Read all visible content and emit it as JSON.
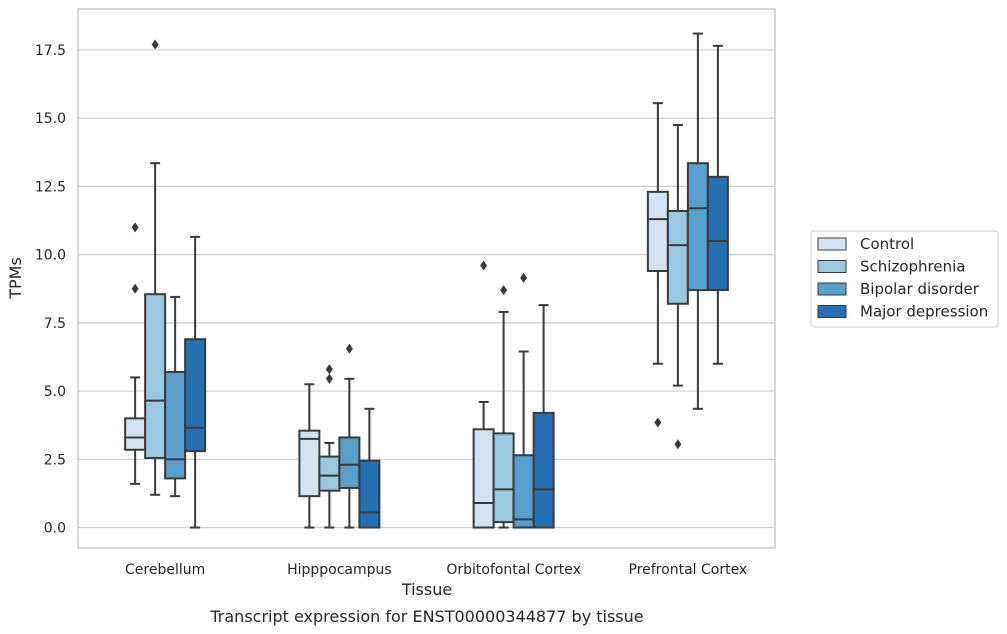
{
  "chart_data": {
    "type": "box",
    "caption": "Transcript expression for ENST00000344877 by tissue",
    "xlabel": "Tissue",
    "ylabel": "TPMs",
    "ylim": [
      -0.75,
      19.0
    ],
    "yticks": [
      "0.0",
      "2.5",
      "5.0",
      "7.5",
      "10.0",
      "12.5",
      "15.0",
      "17.5"
    ],
    "grid": "horizontal",
    "legend_position": "right",
    "categories": [
      "Cerebellum",
      "Hipppocampus",
      "Orbitofontal Cortex",
      "Prefrontal Cortex"
    ],
    "series": [
      {
        "name": "Control",
        "color": "#d3e3f3",
        "boxes": [
          {
            "whisker_low": 1.6,
            "q1": 2.85,
            "median": 3.3,
            "q3": 4.0,
            "whisker_high": 5.5,
            "outliers": [
              11.0,
              8.75
            ]
          },
          {
            "whisker_low": 0.0,
            "q1": 1.15,
            "median": 3.25,
            "q3": 3.55,
            "whisker_high": 5.25,
            "outliers": []
          },
          {
            "whisker_low": 0.0,
            "q1": 0.0,
            "median": 0.9,
            "q3": 3.6,
            "whisker_high": 4.6,
            "outliers": [
              9.6
            ]
          },
          {
            "whisker_low": 6.0,
            "q1": 9.4,
            "median": 11.3,
            "q3": 12.3,
            "whisker_high": 15.55,
            "outliers": [
              3.85
            ]
          }
        ]
      },
      {
        "name": "Schizophrenia",
        "color": "#9ac8e0",
        "boxes": [
          {
            "whisker_low": 1.2,
            "q1": 2.55,
            "median": 4.65,
            "q3": 8.55,
            "whisker_high": 13.35,
            "outliers": [
              17.7
            ]
          },
          {
            "whisker_low": 0.0,
            "q1": 1.35,
            "median": 1.9,
            "q3": 2.6,
            "whisker_high": 3.1,
            "outliers": [
              5.8,
              5.45
            ]
          },
          {
            "whisker_low": 0.0,
            "q1": 0.2,
            "median": 1.4,
            "q3": 3.45,
            "whisker_high": 7.9,
            "outliers": [
              8.7
            ]
          },
          {
            "whisker_low": 5.2,
            "q1": 8.2,
            "median": 10.35,
            "q3": 11.6,
            "whisker_high": 14.75,
            "outliers": [
              3.05
            ]
          }
        ]
      },
      {
        "name": "Bipolar disorder",
        "color": "#5a9fcc",
        "boxes": [
          {
            "whisker_low": 1.15,
            "q1": 1.8,
            "median": 2.5,
            "q3": 5.7,
            "whisker_high": 8.45,
            "outliers": []
          },
          {
            "whisker_low": 0.0,
            "q1": 1.45,
            "median": 2.3,
            "q3": 3.3,
            "whisker_high": 5.45,
            "outliers": [
              6.55
            ]
          },
          {
            "whisker_low": 0.0,
            "q1": 0.0,
            "median": 0.3,
            "q3": 2.65,
            "whisker_high": 6.45,
            "outliers": [
              9.15
            ]
          },
          {
            "whisker_low": 4.35,
            "q1": 8.7,
            "median": 11.7,
            "q3": 13.35,
            "whisker_high": 18.1,
            "outliers": []
          }
        ]
      },
      {
        "name": "Major depression",
        "color": "#2470b3",
        "boxes": [
          {
            "whisker_low": 0.0,
            "q1": 2.8,
            "median": 3.65,
            "q3": 6.9,
            "whisker_high": 10.65,
            "outliers": []
          },
          {
            "whisker_low": 0.0,
            "q1": 0.0,
            "median": 0.55,
            "q3": 2.45,
            "whisker_high": 4.35,
            "outliers": []
          },
          {
            "whisker_low": 0.0,
            "q1": 0.0,
            "median": 1.4,
            "q3": 4.2,
            "whisker_high": 8.15,
            "outliers": []
          },
          {
            "whisker_low": 6.0,
            "q1": 8.7,
            "median": 10.5,
            "q3": 12.85,
            "whisker_high": 17.65,
            "outliers": []
          }
        ]
      }
    ]
  }
}
